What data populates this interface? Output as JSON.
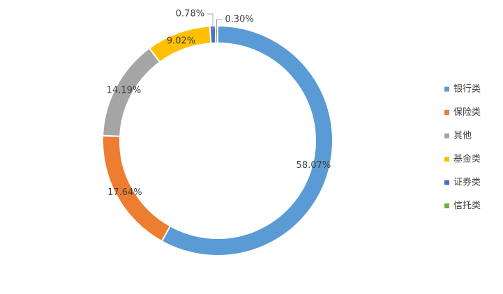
{
  "chart_data": {
    "type": "donut",
    "categories": [
      "银行类",
      "保险类",
      "其他",
      "基金类",
      "证券类",
      "信托类"
    ],
    "values": [
      58.07,
      17.64,
      14.19,
      9.02,
      0.78,
      0.3
    ],
    "value_labels": [
      "58.07%",
      "17.64%",
      "14.19%",
      "9.02%",
      "0.78%",
      "0.30%"
    ],
    "colors": [
      "#5b9bd5",
      "#ed7d31",
      "#a5a5a5",
      "#ffc000",
      "#4472c4",
      "#70ad47"
    ],
    "legend": "right"
  }
}
